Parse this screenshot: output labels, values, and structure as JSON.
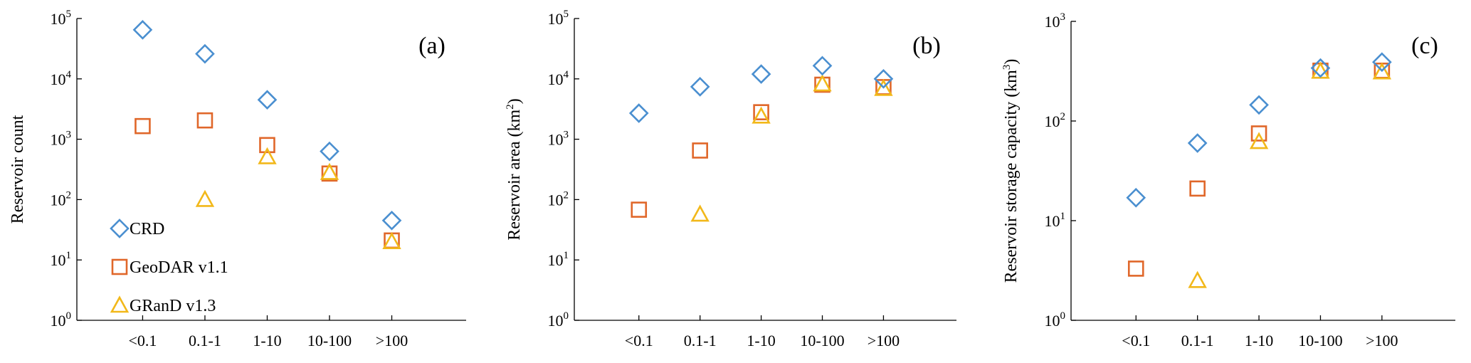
{
  "colors": {
    "CRD": "#4a8fd0",
    "GeoDAR v1.1": "#e0672a",
    "GRanD v1.3": "#f2b81a"
  },
  "legend": [
    {
      "name": "CRD",
      "marker": "diamond"
    },
    {
      "name": "GeoDAR v1.1",
      "marker": "square"
    },
    {
      "name": "GRanD v1.3",
      "marker": "triangle"
    }
  ],
  "chart_data": [
    {
      "type": "scatter",
      "panel": "(a)",
      "ylabel": "Reservoir count",
      "ylabel_parts": [],
      "yscale": "log",
      "ylim_exp": [
        0,
        5
      ],
      "categories": [
        "<0.1",
        "0.1-1",
        "1-10",
        "10-100",
        ">100"
      ],
      "series": [
        {
          "name": "CRD",
          "marker": "diamond",
          "values": [
            65000,
            26000,
            4500,
            630,
            45
          ]
        },
        {
          "name": "GeoDAR v1.1",
          "marker": "square",
          "values": [
            1650,
            2050,
            800,
            270,
            21
          ]
        },
        {
          "name": "GRanD v1.3",
          "marker": "triangle",
          "values": [
            null,
            100,
            510,
            280,
            20
          ]
        }
      ],
      "legend_position": "bottom-left"
    },
    {
      "type": "scatter",
      "panel": "(b)",
      "ylabel": "",
      "ylabel_parts": [
        "Reservoir area (km",
        "2",
        ")"
      ],
      "yscale": "log",
      "ylim_exp": [
        0,
        5
      ],
      "categories": [
        "<0.1",
        "0.1-1",
        "1-10",
        "10-100",
        ">100"
      ],
      "series": [
        {
          "name": "CRD",
          "marker": "diamond",
          "values": [
            2700,
            7400,
            12000,
            16500,
            10000
          ]
        },
        {
          "name": "GeoDAR v1.1",
          "marker": "square",
          "values": [
            68,
            650,
            2800,
            8000,
            7300
          ]
        },
        {
          "name": "GRanD v1.3",
          "marker": "triangle",
          "values": [
            null,
            57,
            2400,
            8200,
            6900
          ]
        }
      ]
    },
    {
      "type": "scatter",
      "panel": "(c)",
      "ylabel": "",
      "ylabel_parts": [
        "Reservoir storage capacity (km",
        "3",
        ")"
      ],
      "yscale": "log",
      "ylim_exp": [
        0,
        3
      ],
      "categories": [
        "<0.1",
        "0.1-1",
        "1-10",
        "10-100",
        ">100"
      ],
      "series": [
        {
          "name": "CRD",
          "marker": "diamond",
          "values": [
            17,
            60,
            145,
            340,
            390
          ]
        },
        {
          "name": "GeoDAR v1.1",
          "marker": "square",
          "values": [
            3.3,
            21,
            75,
            320,
            320
          ]
        },
        {
          "name": "GRanD v1.3",
          "marker": "triangle",
          "values": [
            null,
            2.5,
            62,
            315,
            310
          ]
        }
      ]
    }
  ]
}
